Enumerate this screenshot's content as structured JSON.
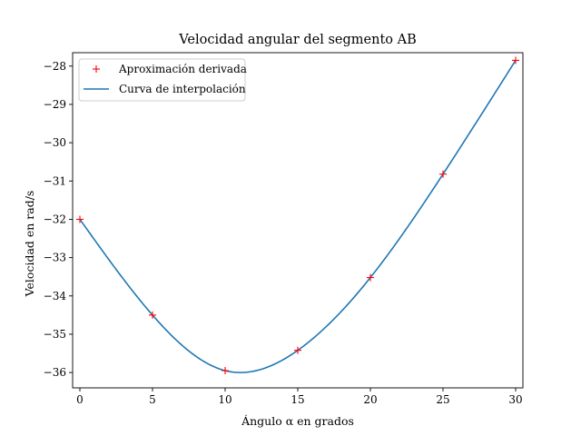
{
  "chart_data": {
    "type": "line",
    "title": "Velocidad angular del segmento AB",
    "xlabel": "Ángulo α en grados",
    "ylabel": "Velocidad en rad/s",
    "xlim": [
      -0.5,
      30.5
    ],
    "ylim": [
      -36.4,
      -27.65
    ],
    "xticks": [
      0,
      5,
      10,
      15,
      20,
      25,
      30
    ],
    "xtick_labels": [
      "0",
      "5",
      "10",
      "15",
      "20",
      "25",
      "30"
    ],
    "yticks": [
      -36,
      -35,
      -34,
      -33,
      -32,
      -31,
      -30,
      -29,
      -28
    ],
    "ytick_labels": [
      "−36",
      "−35",
      "−34",
      "−33",
      "−32",
      "−31",
      "−30",
      "−29",
      "−28"
    ],
    "grid": false,
    "legend_position": "top-left",
    "series": [
      {
        "name": "Aproximación derivada",
        "style": "markers",
        "marker": "+",
        "color": "#ff0000",
        "x": [
          0,
          5,
          10,
          15,
          20,
          25,
          30
        ],
        "y": [
          -32.0,
          -34.5,
          -35.95,
          -35.42,
          -33.52,
          -30.82,
          -27.85
        ]
      },
      {
        "name": "Curva de interpolación",
        "style": "line",
        "color": "#1f77b4",
        "x": [
          0,
          5,
          10,
          15,
          20,
          25,
          30
        ],
        "y": [
          -32.0,
          -34.5,
          -35.95,
          -35.42,
          -33.52,
          -30.82,
          -27.85
        ]
      }
    ]
  }
}
